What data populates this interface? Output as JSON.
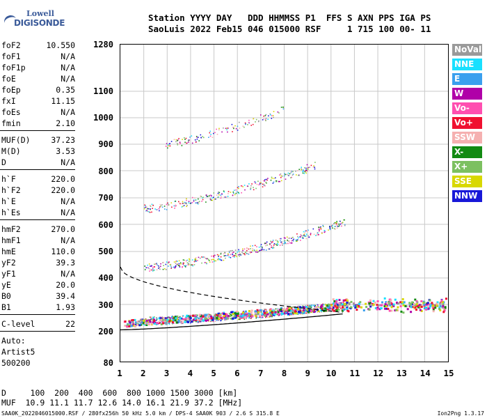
{
  "logo": {
    "line1": "Lowell",
    "line2": "DIGISONDE"
  },
  "header": {
    "line1": "Station YYYY DAY   DDD HHMMSS P1  FFS S AXN PPS IGA PS",
    "line2": "SaoLuis 2022 Feb15 046 015000 RSF     1 715 100 00- 11"
  },
  "params": [
    {
      "k": "foF2",
      "v": "10.550"
    },
    {
      "k": "foF1",
      "v": "N/A"
    },
    {
      "k": "foF1p",
      "v": "N/A"
    },
    {
      "k": "foE",
      "v": "N/A"
    },
    {
      "k": "foEp",
      "v": "0.35"
    },
    {
      "k": "fxI",
      "v": "11.15"
    },
    {
      "k": "foEs",
      "v": "N/A"
    },
    {
      "k": "fmin",
      "v": "2.10"
    },
    {
      "k": "MUF(D)",
      "v": "37.23"
    },
    {
      "k": "M(D)",
      "v": "3.53"
    },
    {
      "k": "D",
      "v": "N/A"
    },
    {
      "k": "h`F",
      "v": "220.0"
    },
    {
      "k": "h`F2",
      "v": "220.0"
    },
    {
      "k": "h`E",
      "v": "N/A"
    },
    {
      "k": "h`Es",
      "v": "N/A"
    },
    {
      "k": "hmF2",
      "v": "270.0"
    },
    {
      "k": "hmF1",
      "v": "N/A"
    },
    {
      "k": "hmE",
      "v": "110.0"
    },
    {
      "k": "yF2",
      "v": "39.3"
    },
    {
      "k": "yF1",
      "v": "N/A"
    },
    {
      "k": "yE",
      "v": "20.0"
    },
    {
      "k": "B0",
      "v": "39.4"
    },
    {
      "k": "B1",
      "v": "1.93"
    },
    {
      "k": "C-level",
      "v": "22"
    }
  ],
  "auto": {
    "l1": "Auto:",
    "l2": "Artist5",
    "l3": "500200"
  },
  "yticks": [
    "1280",
    "1100",
    "1000",
    "900",
    "800",
    "700",
    "600",
    "500",
    "400",
    "300",
    "200",
    "80"
  ],
  "xticks": [
    "1",
    "2",
    "3",
    "4",
    "5",
    "6",
    "7",
    "8",
    "9",
    "10",
    "11",
    "12",
    "13",
    "14",
    "15"
  ],
  "legend": [
    {
      "label": "NoVal",
      "color": "#9a9a9a"
    },
    {
      "label": "NNE",
      "color": "#19e0ff"
    },
    {
      "label": "E",
      "color": "#3aa0ee"
    },
    {
      "label": "W",
      "color": "#b000a8"
    },
    {
      "label": "Vo-",
      "color": "#ff4fb0"
    },
    {
      "label": "Vo+",
      "color": "#f01030"
    },
    {
      "label": "SSW",
      "color": "#f5b0b0"
    },
    {
      "label": "X-",
      "color": "#128a12"
    },
    {
      "label": "X+",
      "color": "#7cc060"
    },
    {
      "label": "SSE",
      "color": "#d8d800"
    },
    {
      "label": "NNW",
      "color": "#1818d8"
    }
  ],
  "bottom": {
    "line1": "D     100  200  400  600  800 1000 1500 3000 [km]",
    "line2": "MUF  10.9 11.1 11.7 12.6 14.0 16.1 21.9 37.2 [MHz]"
  },
  "footer": {
    "left": "SAA0K_2022046015000.RSF / 280fx256h 50 kHz 5.0 km / DPS-4 SAA0K 903 / 2.6 S 315.8 E",
    "right": "Ion2Png 1.3.17"
  }
}
